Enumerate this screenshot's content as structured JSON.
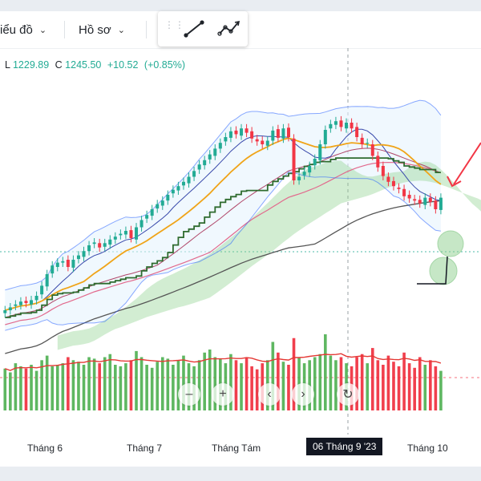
{
  "toolbar": {
    "chart_type_label": "iểu đồ",
    "templates_label": "Hồ sơ",
    "draw_tools": [
      "trend-line-icon",
      "path-icon"
    ]
  },
  "legend": {
    "low_label": "L",
    "low_value": "1229.89",
    "close_label": "C",
    "close_value": "1245.50",
    "change": "+10.52",
    "change_pct": "(+0.85%)"
  },
  "time_axis": {
    "labels": [
      "Tháng 6",
      "Tháng 7",
      "Tháng Tám",
      "Tháng 10"
    ],
    "crosshair_label": "06 Tháng 9 '23"
  },
  "navigation": [
    "zoom-out-icon",
    "zoom-in-icon",
    "scroll-left-icon",
    "scroll-right-icon",
    "reset-icon"
  ],
  "colors": {
    "up": "#22ab94",
    "down": "#f23645",
    "volume_up": "#4caf50",
    "volume_down": "#ef2a3a",
    "bollinger": "#2962ff",
    "ema_orange": "#f0a418",
    "kijun_green": "#2e6b2e",
    "ma_long": "#555555",
    "cloud": "#8fd18f"
  },
  "chart_data": {
    "type": "candlestick",
    "close": [
      1090,
      1094,
      1098,
      1102,
      1100,
      1104,
      1110,
      1124,
      1140,
      1152,
      1156,
      1158,
      1150,
      1160,
      1166,
      1172,
      1180,
      1184,
      1177,
      1183,
      1188,
      1192,
      1196,
      1200,
      1190,
      1205,
      1215,
      1222,
      1230,
      1237,
      1242,
      1250,
      1257,
      1262,
      1268,
      1275,
      1283,
      1292,
      1298,
      1306,
      1314,
      1322,
      1330,
      1338,
      1334,
      1342,
      1336,
      1328,
      1324,
      1320,
      1325,
      1339,
      1329,
      1342,
      1330,
      1270,
      1275,
      1282,
      1290,
      1300,
      1320,
      1340,
      1348,
      1352,
      1344,
      1350,
      1342,
      1330,
      1320,
      1322,
      1304,
      1288,
      1276,
      1268,
      1262,
      1258,
      1248,
      1245,
      1242,
      1238,
      1246,
      1240,
      1230,
      1246
    ],
    "volume": [
      0.55,
      0.5,
      0.62,
      0.58,
      0.55,
      0.6,
      0.52,
      0.66,
      0.72,
      0.58,
      0.6,
      0.62,
      0.7,
      0.66,
      0.64,
      0.6,
      0.7,
      0.68,
      0.62,
      0.7,
      0.74,
      0.6,
      0.58,
      0.62,
      0.66,
      0.78,
      0.7,
      0.6,
      0.56,
      0.64,
      0.7,
      0.68,
      0.6,
      0.66,
      0.72,
      0.62,
      0.58,
      0.66,
      0.76,
      0.8,
      0.7,
      0.68,
      0.62,
      0.74,
      0.66,
      0.62,
      0.7,
      0.58,
      0.54,
      0.62,
      0.66,
      0.9,
      0.76,
      0.64,
      0.6,
      0.95,
      0.7,
      0.62,
      0.66,
      0.7,
      0.74,
      1.0,
      0.72,
      0.66,
      0.7,
      0.62,
      0.58,
      0.7,
      0.74,
      0.62,
      0.82,
      0.66,
      0.6,
      0.72,
      0.64,
      0.58,
      0.76,
      0.62,
      0.56,
      0.7,
      0.6,
      0.66,
      0.58,
      0.52
    ],
    "volume_ma_level": 0.68
  }
}
